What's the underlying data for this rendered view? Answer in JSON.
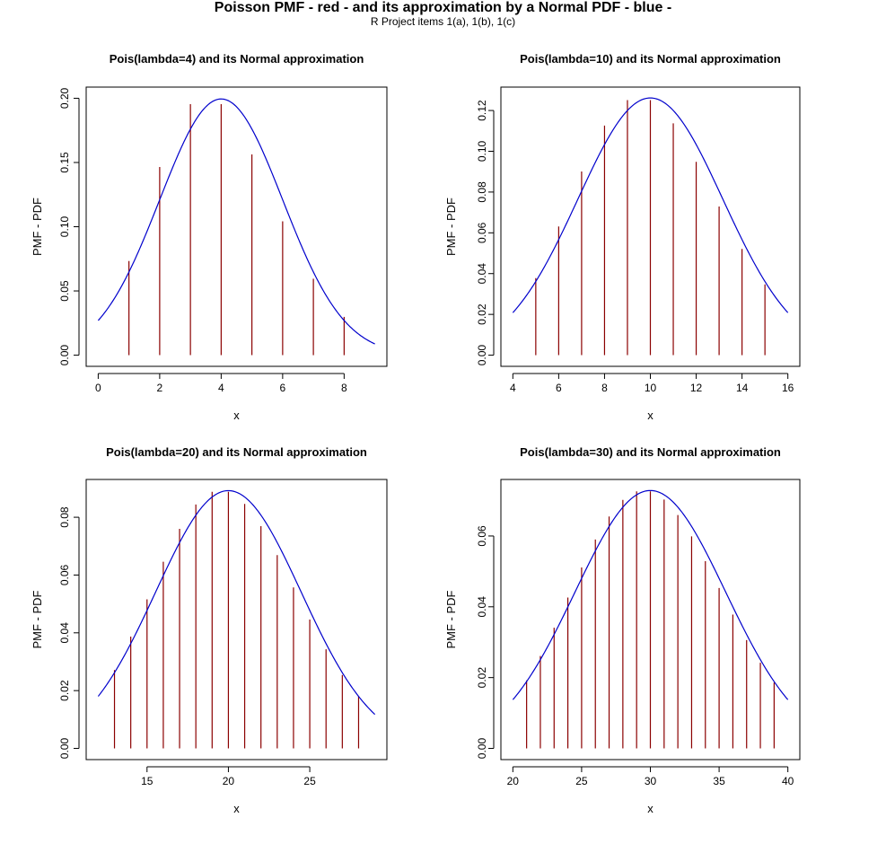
{
  "page": {
    "title": "Poisson PMF - red - and its approximation by a Normal  PDF - blue -",
    "subtitle": "R Project items 1(a), 1(b), 1(c)"
  },
  "colors": {
    "pmf": "#8b0000",
    "pdf": "#0000cc",
    "axis": "#000000"
  },
  "chart_data": [
    {
      "type": "line",
      "title": "Pois(lambda=4) and its Normal approximation",
      "xlabel": "x",
      "ylabel": "PMF  -  PDF",
      "lambda": 4,
      "xlim": [
        0,
        9
      ],
      "ylim": [
        0,
        0.2
      ],
      "xticks": [
        0,
        2,
        4,
        6,
        8
      ],
      "yticks": [
        0,
        0.05,
        0.1,
        0.15,
        0.2
      ],
      "ytick_labels": [
        "0.00",
        "0.05",
        "0.10",
        "0.15",
        "0.20"
      ],
      "series": [
        {
          "name": "Poisson PMF",
          "style": "vlines",
          "x": [
            1,
            2,
            3,
            4,
            5,
            6,
            7,
            8
          ],
          "values": [
            0.0733,
            0.1465,
            0.1954,
            0.1954,
            0.1563,
            0.1042,
            0.0595,
            0.0298
          ]
        },
        {
          "name": "Normal PDF",
          "style": "curve",
          "mean": 4,
          "sd": 2,
          "x_range": [
            0,
            9
          ]
        }
      ]
    },
    {
      "type": "line",
      "title": "Pois(lambda=10) and its Normal approximation",
      "xlabel": "x",
      "ylabel": "PMF  -  PDF",
      "lambda": 10,
      "xlim": [
        4,
        16
      ],
      "ylim": [
        0,
        0.126
      ],
      "xticks": [
        4,
        6,
        8,
        10,
        12,
        14,
        16
      ],
      "yticks": [
        0,
        0.02,
        0.04,
        0.06,
        0.08,
        0.1,
        0.12
      ],
      "ytick_labels": [
        "0.00",
        "0.02",
        "0.04",
        "0.06",
        "0.08",
        "0.10",
        "0.12"
      ],
      "series": [
        {
          "name": "Poisson PMF",
          "style": "vlines",
          "x": [
            5,
            6,
            7,
            8,
            9,
            10,
            11,
            12,
            13,
            14,
            15
          ],
          "values": [
            0.0378,
            0.0631,
            0.0901,
            0.1126,
            0.1251,
            0.1251,
            0.1137,
            0.0948,
            0.0729,
            0.0521,
            0.0347
          ]
        },
        {
          "name": "Normal PDF",
          "style": "curve",
          "mean": 10,
          "sd": 3.1623,
          "x_range": [
            4,
            16
          ]
        }
      ]
    },
    {
      "type": "line",
      "title": "Pois(lambda=20) and its Normal approximation",
      "xlabel": "x",
      "ylabel": "PMF  -  PDF",
      "lambda": 20,
      "xlim": [
        12,
        29
      ],
      "ylim": [
        0,
        0.0892
      ],
      "xticks": [
        15,
        20,
        25
      ],
      "yticks": [
        0,
        0.02,
        0.04,
        0.06,
        0.08
      ],
      "ytick_labels": [
        "0.00",
        "0.02",
        "0.04",
        "0.06",
        "0.08"
      ],
      "series": [
        {
          "name": "Poisson PMF",
          "style": "vlines",
          "x": [
            13,
            14,
            15,
            16,
            17,
            18,
            19,
            20,
            21,
            22,
            23,
            24,
            25,
            26,
            27,
            28
          ],
          "values": [
            0.0271,
            0.0387,
            0.0516,
            0.0646,
            0.076,
            0.0844,
            0.0888,
            0.0888,
            0.0846,
            0.0769,
            0.0669,
            0.0557,
            0.0446,
            0.0343,
            0.0254,
            0.0181
          ]
        },
        {
          "name": "Normal PDF",
          "style": "curve",
          "mean": 20,
          "sd": 4.4721,
          "x_range": [
            12,
            29
          ]
        }
      ]
    },
    {
      "type": "line",
      "title": "Pois(lambda=30) and its Normal approximation",
      "xlabel": "x",
      "ylabel": "PMF  -  PDF",
      "lambda": 30,
      "xlim": [
        20,
        40
      ],
      "ylim": [
        0,
        0.0728
      ],
      "xticks": [
        20,
        25,
        30,
        35,
        40
      ],
      "yticks": [
        0,
        0.02,
        0.04,
        0.06
      ],
      "ytick_labels": [
        "0.00",
        "0.02",
        "0.04",
        "0.06"
      ],
      "series": [
        {
          "name": "Poisson PMF",
          "style": "vlines",
          "x": [
            21,
            22,
            23,
            24,
            25,
            26,
            27,
            28,
            29,
            30,
            31,
            32,
            33,
            34,
            35,
            36,
            37,
            38,
            39
          ],
          "values": [
            0.0192,
            0.0261,
            0.0341,
            0.0426,
            0.0511,
            0.059,
            0.0655,
            0.0702,
            0.0726,
            0.0726,
            0.0703,
            0.0659,
            0.0599,
            0.0529,
            0.0453,
            0.0378,
            0.0306,
            0.0242,
            0.0186
          ]
        },
        {
          "name": "Normal PDF",
          "style": "curve",
          "mean": 30,
          "sd": 5.4772,
          "x_range": [
            20,
            40
          ]
        }
      ]
    }
  ]
}
